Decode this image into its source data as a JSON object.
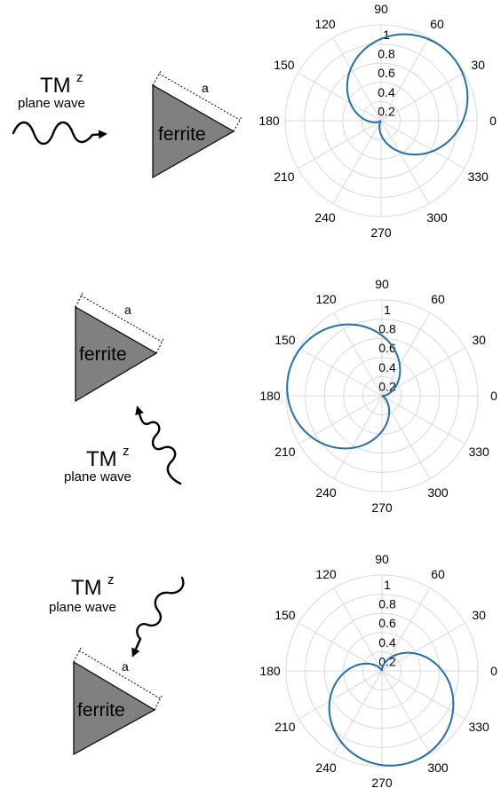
{
  "panels": [
    {
      "wave_label": "TM",
      "wave_sup": "z",
      "wave_sub": "plane wave",
      "material": "ferrite",
      "side": "a",
      "incidence": "left",
      "polar": {
        "main_lobe_deg": 45,
        "null_deg": 225
      }
    },
    {
      "wave_label": "TM",
      "wave_sup": "z",
      "wave_sub": "plane wave",
      "material": "ferrite",
      "side": "a",
      "incidence": "bottom",
      "polar": {
        "main_lobe_deg": 165,
        "null_deg": 345
      }
    },
    {
      "wave_label": "TM",
      "wave_sup": "z",
      "wave_sub": "plane wave",
      "material": "ferrite",
      "side": "a",
      "incidence": "top-right",
      "polar": {
        "main_lobe_deg": 285,
        "null_deg": 105
      }
    }
  ],
  "chart_data": [
    {
      "type": "polar",
      "angle_ticks": [
        "0",
        "30",
        "60",
        "90",
        "120",
        "150",
        "180",
        "210",
        "240",
        "270",
        "300",
        "330"
      ],
      "radial_ticks": [
        "0.2",
        "0.4",
        "0.6",
        "0.8",
        "1"
      ],
      "rlim": [
        0,
        1
      ],
      "grid": true,
      "series": [
        {
          "r_max": 1,
          "peak_angle_deg": 45,
          "null_angle_deg": 225
        }
      ]
    },
    {
      "type": "polar",
      "angle_ticks": [
        "0",
        "30",
        "60",
        "90",
        "120",
        "150",
        "180",
        "210",
        "240",
        "270",
        "300",
        "330"
      ],
      "radial_ticks": [
        "0.2",
        "0.4",
        "0.6",
        "0.8",
        "1"
      ],
      "rlim": [
        0,
        1
      ],
      "grid": true,
      "series": [
        {
          "r_max": 1,
          "peak_angle_deg": 165,
          "null_angle_deg": 345
        }
      ]
    },
    {
      "type": "polar",
      "angle_ticks": [
        "0",
        "30",
        "60",
        "90",
        "120",
        "150",
        "180",
        "210",
        "240",
        "270",
        "300",
        "330"
      ],
      "radial_ticks": [
        "0.2",
        "0.4",
        "0.6",
        "0.8",
        "1"
      ],
      "rlim": [
        0,
        1
      ],
      "grid": true,
      "series": [
        {
          "r_max": 1,
          "peak_angle_deg": 285,
          "null_angle_deg": 105
        }
      ]
    }
  ]
}
